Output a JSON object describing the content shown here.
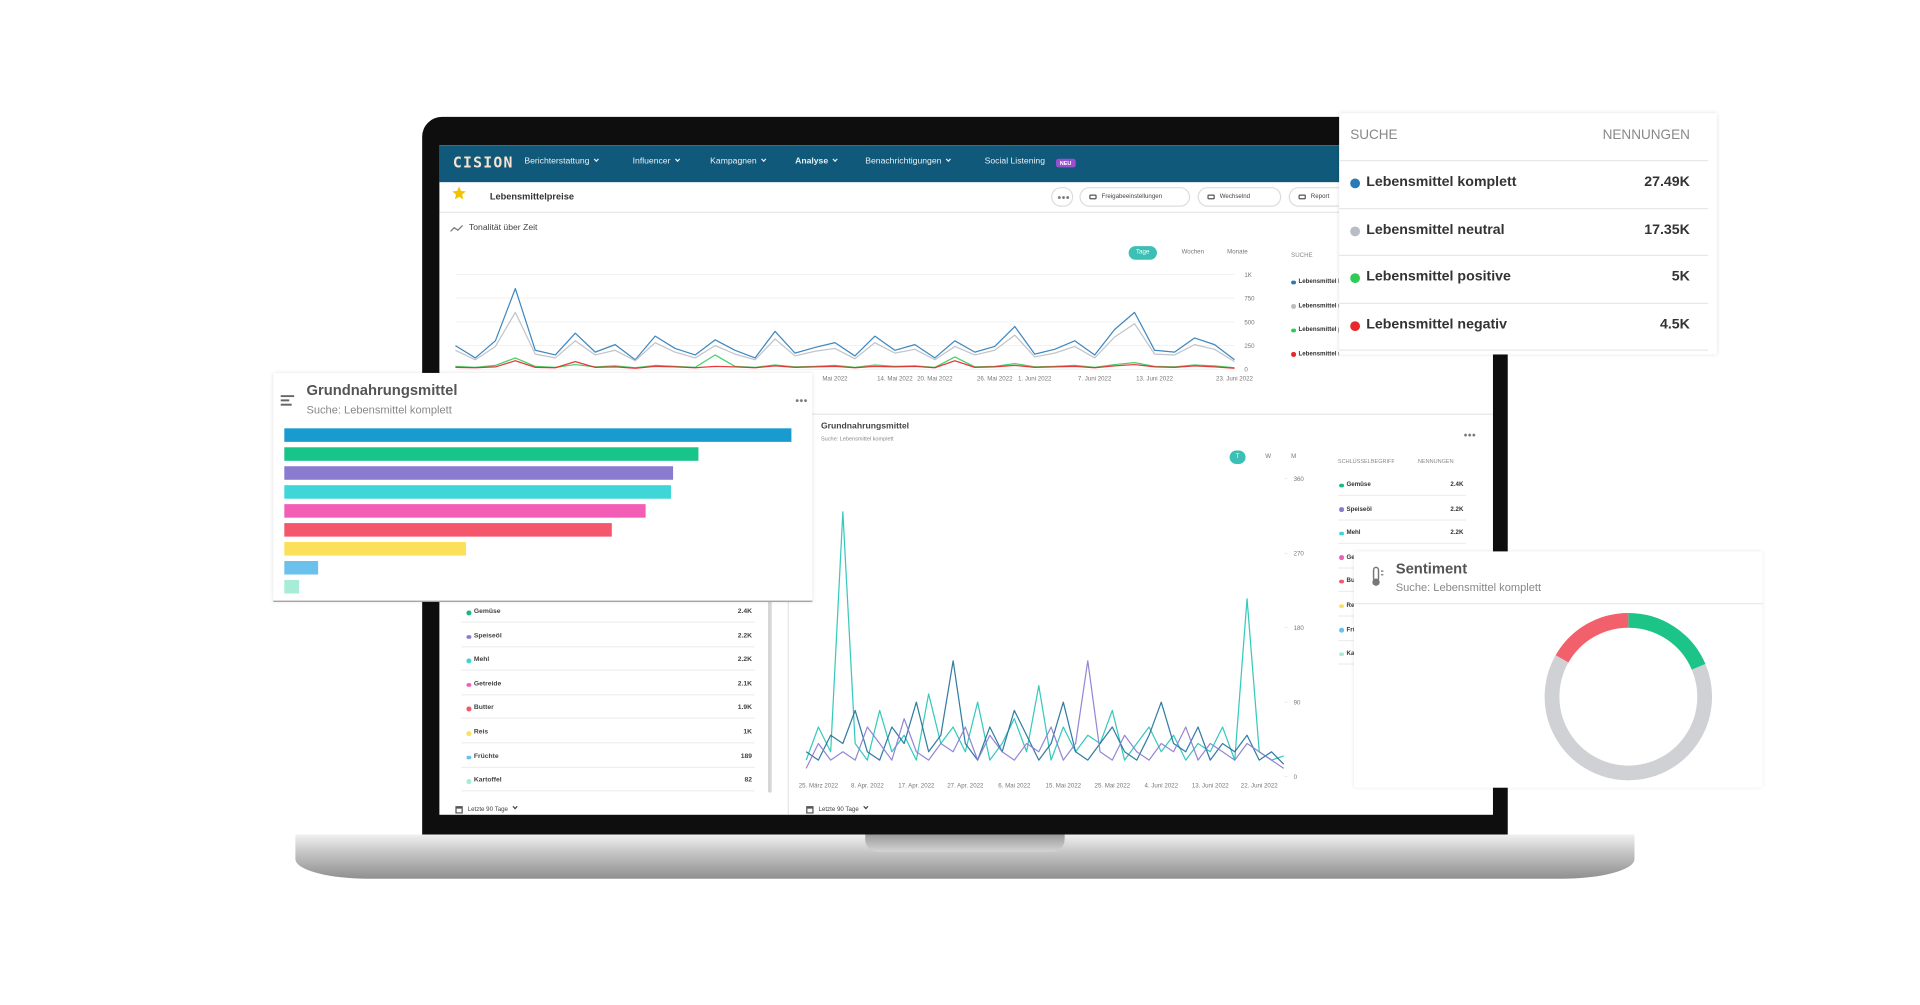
{
  "nav": {
    "logo": "CISION",
    "items": [
      "Berichterstattung",
      "Influencer",
      "Kampagnen",
      "Analyse",
      "Benachrichtigungen",
      "Social Listening"
    ],
    "badge": "NEU"
  },
  "toolbar": {
    "title": "Lebensmittelpreise",
    "buttons": [
      "Freigabeeinstellungen",
      "Wechselnd",
      "Report"
    ]
  },
  "tonality_card": {
    "tabs": [
      "Tage",
      "Wochen",
      "Monate"
    ]
  },
  "search_panel": {
    "header": [
      "SUCHE",
      "NENNUNGEN"
    ],
    "mentions": [
      "27.49K",
      "17.35K",
      "5K",
      "4.5K"
    ]
  },
  "keyword_card": {
    "tabs": [
      "T",
      "W",
      "M"
    ],
    "header": [
      "SCHLÜSSELBEGRIFF",
      "NENNUNGEN"
    ],
    "footer": "Letzte 90 Tage"
  },
  "keywords": [
    {
      "name": "Gemüse",
      "mentions": "2.4K",
      "color": "#19b88a"
    },
    {
      "name": "Speiseöl",
      "mentions": "2.2K",
      "color": "#8a7ad0"
    },
    {
      "name": "Mehl",
      "mentions": "2.2K",
      "color": "#3ed6d6"
    },
    {
      "name": "Getreide",
      "mentions": "2.1K",
      "color": "#f25db5"
    },
    {
      "name": "Butter",
      "mentions": "1.9K",
      "color": "#f4566b"
    },
    {
      "name": "Reis",
      "mentions": "1K",
      "color": "#fde05a"
    },
    {
      "name": "Früchte",
      "mentions": "189",
      "color": "#6cc0ec"
    },
    {
      "name": "Kartoffel",
      "mentions": "82",
      "color": "#a6ecd6"
    }
  ],
  "chart_data": [
    {
      "type": "line",
      "title": "Tonalität über Zeit",
      "x": [
        null,
        null,
        null,
        null,
        null,
        null,
        null,
        null,
        null,
        null,
        null,
        null,
        null,
        null,
        null,
        null,
        null,
        null,
        null,
        "Mai 2022",
        null,
        null,
        "14. Mai 2022",
        null,
        "20. Mai 2022",
        null,
        null,
        "26. Mai 2022",
        null,
        "1. Juni 2022",
        null,
        null,
        "7. Juni 2022",
        null,
        null,
        "13. Juni 2022",
        null,
        null,
        null,
        "23. Juni 2022"
      ],
      "ylim": [
        0,
        1000
      ],
      "yticks": [
        0,
        250,
        500,
        750,
        {
          "value": 1000,
          "label": "1K"
        }
      ],
      "grid": true,
      "series": [
        {
          "name": "Lebensmittel komplett",
          "color": "#2a7ab8",
          "values": [
            250,
            120,
            300,
            850,
            200,
            150,
            380,
            180,
            260,
            100,
            350,
            220,
            150,
            310,
            200,
            120,
            400,
            170,
            230,
            280,
            140,
            350,
            200,
            260,
            120,
            300,
            180,
            240,
            450,
            160,
            210,
            300,
            150,
            420,
            600,
            200,
            180,
            330,
            260,
            100
          ]
        },
        {
          "name": "Lebensmittel neutral",
          "color": "#b9bec4",
          "values": [
            200,
            100,
            240,
            600,
            160,
            120,
            300,
            150,
            200,
            90,
            280,
            180,
            120,
            250,
            160,
            100,
            320,
            140,
            190,
            220,
            110,
            280,
            170,
            210,
            100,
            240,
            150,
            200,
            360,
            130,
            170,
            240,
            120,
            340,
            480,
            160,
            150,
            260,
            210,
            80
          ]
        },
        {
          "name": "Lebensmittel positive",
          "color": "#2ecc55",
          "values": [
            30,
            20,
            40,
            120,
            30,
            20,
            50,
            25,
            35,
            15,
            40,
            30,
            20,
            150,
            30,
            20,
            45,
            25,
            30,
            40,
            20,
            45,
            30,
            35,
            20,
            130,
            25,
            30,
            60,
            25,
            30,
            40,
            20,
            50,
            70,
            30,
            25,
            45,
            35,
            15
          ]
        },
        {
          "name": "Lebensmittel negativ",
          "color": "#e8262b",
          "values": [
            20,
            15,
            25,
            90,
            20,
            15,
            80,
            20,
            25,
            10,
            30,
            25,
            15,
            30,
            25,
            15,
            35,
            20,
            25,
            30,
            15,
            30,
            25,
            30,
            15,
            90,
            20,
            25,
            40,
            20,
            25,
            30,
            15,
            35,
            50,
            25,
            20,
            35,
            25,
            10
          ]
        }
      ]
    },
    {
      "type": "bar",
      "orientation": "horizontal",
      "title": "Grundnahrungsmittel",
      "subtitle": "Suche: Lebensmittel komplett",
      "values": [
        2400,
        1960,
        1840,
        1830,
        1710,
        1550,
        860,
        160,
        70
      ],
      "colors": [
        "#1a9bd0",
        "#19c48a",
        "#8a7ad0",
        "#3ed6d6",
        "#f25db5",
        "#f4566b",
        "#fde05a",
        "#6cc0ec",
        "#a6ecd6"
      ]
    },
    {
      "type": "line",
      "x": [
        null,
        "25. März 2022",
        null,
        null,
        null,
        "8. Apr. 2022",
        null,
        null,
        null,
        "17. Apr. 2022",
        null,
        null,
        null,
        "27. Apr. 2022",
        null,
        null,
        null,
        "6. Mai 2022",
        null,
        null,
        null,
        "15. Mai 2022",
        null,
        null,
        null,
        "25. Mai 2022",
        null,
        null,
        null,
        "4. Juni 2022",
        null,
        null,
        null,
        "13. Juni 2022",
        null,
        null,
        null,
        "22. Juni 2022",
        null,
        null
      ],
      "ylim": [
        0,
        360
      ],
      "yticks": [
        0,
        90,
        180,
        270,
        360
      ],
      "grid": false,
      "series": [
        {
          "color": "#20c3b5",
          "values": [
            20,
            60,
            30,
            320,
            40,
            20,
            80,
            30,
            50,
            20,
            100,
            40,
            60,
            30,
            90,
            20,
            40,
            70,
            30,
            110,
            20,
            60,
            30,
            50,
            40,
            80,
            20,
            40,
            60,
            30,
            50,
            20,
            40,
            30,
            60,
            20,
            215,
            30,
            20,
            25
          ]
        },
        {
          "color": "#1c6e99",
          "values": [
            30,
            20,
            50,
            40,
            80,
            30,
            20,
            60,
            40,
            90,
            30,
            50,
            140,
            40,
            20,
            60,
            30,
            80,
            50,
            20,
            40,
            90,
            30,
            20,
            40,
            60,
            30,
            20,
            50,
            90,
            40,
            30,
            60,
            20,
            40,
            30,
            50,
            20,
            30,
            15
          ]
        },
        {
          "color": "#8a7ad0",
          "values": [
            10,
            40,
            20,
            30,
            20,
            60,
            40,
            20,
            70,
            30,
            20,
            40,
            30,
            60,
            20,
            50,
            30,
            20,
            40,
            30,
            60,
            20,
            40,
            140,
            30,
            20,
            50,
            30,
            20,
            40,
            30,
            60,
            20,
            40,
            30,
            20,
            40,
            30,
            20,
            10
          ]
        }
      ]
    },
    {
      "type": "donut",
      "title": "Sentiment",
      "subtitle": "Suche: Lebensmittel komplett",
      "values": [
        5000,
        17350,
        4500
      ],
      "colors": [
        "#1cc488",
        "#cfd1d4",
        "#f2606b"
      ]
    }
  ]
}
